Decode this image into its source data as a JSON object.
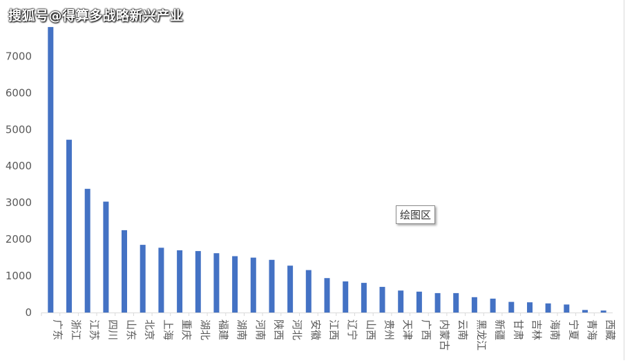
{
  "watermark": "搜狐号@得算多战略新兴产业",
  "tooltip": "绘图区",
  "chart_data": {
    "type": "bar",
    "title": "",
    "xlabel": "",
    "ylabel": "",
    "ylim": [
      0,
      8000
    ],
    "yticks": [
      0,
      1000,
      2000,
      3000,
      4000,
      5000,
      6000,
      7000
    ],
    "grid": false,
    "legend": "none",
    "bar_color": "#4472c4",
    "categories": [
      "广东",
      "浙江",
      "江苏",
      "四川",
      "山东",
      "北京",
      "上海",
      "重庆",
      "湖北",
      "福建",
      "湖南",
      "河南",
      "陕西",
      "河北",
      "安徽",
      "江西",
      "辽宁",
      "山西",
      "贵州",
      "天津",
      "广西",
      "内蒙古",
      "云南",
      "黑龙江",
      "新疆",
      "甘肃",
      "吉林",
      "海南",
      "宁夏",
      "青海",
      "西藏"
    ],
    "values": [
      7800,
      4720,
      3380,
      3030,
      2250,
      1850,
      1770,
      1700,
      1680,
      1620,
      1540,
      1500,
      1440,
      1280,
      1160,
      940,
      850,
      810,
      700,
      600,
      570,
      530,
      530,
      420,
      380,
      290,
      280,
      250,
      220,
      70,
      55
    ]
  }
}
